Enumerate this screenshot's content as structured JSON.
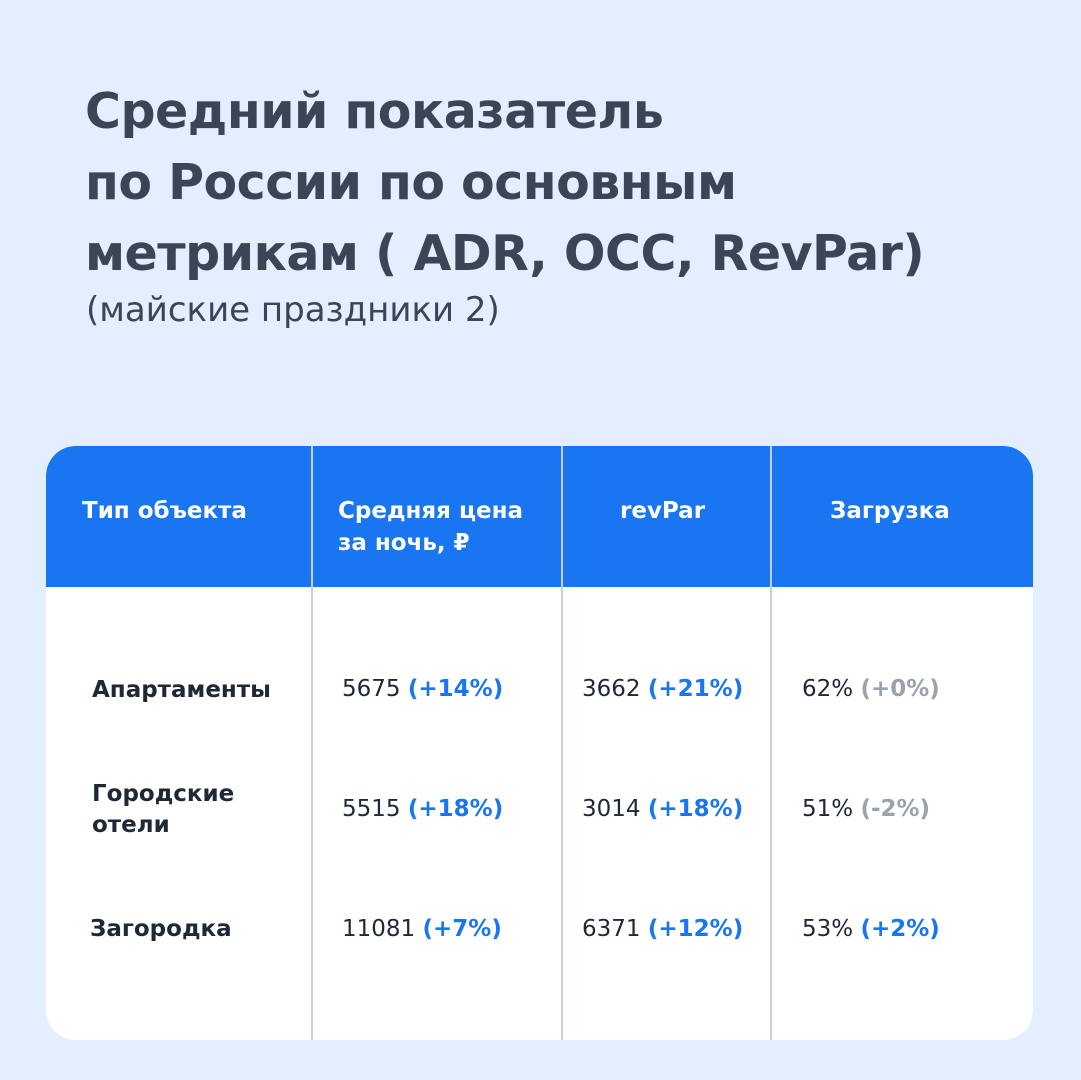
{
  "title": {
    "lines": [
      "Средний показатель",
      "по России по основным",
      "метрикам ( ADR, OCC, RevPar)"
    ],
    "subtitle": "(майские праздники 2)"
  },
  "table": {
    "headers": {
      "type": "Тип объекта",
      "price_line1": "Средняя цена",
      "price_line2": "за ночь, ₽",
      "revpar": "revPar",
      "occupancy": "Загрузка"
    },
    "rows": [
      {
        "name_line1": "Апартаменты",
        "name_line2": "",
        "price": "5675",
        "price_change": "(+14%)",
        "revpar": "3662",
        "revpar_change": "(+21%)",
        "occupancy": "62%",
        "occupancy_change": "(+0%)"
      },
      {
        "name_line1": "Городские",
        "name_line2": "отели",
        "price": "5515",
        "price_change": "(+18%)",
        "revpar": "3014",
        "revpar_change": "(+18%)",
        "occupancy": "51%",
        "occupancy_change": "(-2%)"
      },
      {
        "name_line1": "Загородка",
        "name_line2": "",
        "price": "11081",
        "price_change": "(+7%)",
        "revpar": "6371",
        "revpar_change": "(+12%)",
        "occupancy": "53%",
        "occupancy_change": "(+2%)"
      }
    ]
  },
  "colors": {
    "background": "#e3efff",
    "header": "#1976f0",
    "positive_change": "#1976f0",
    "neutral_change": "#9aa3ad",
    "text": "#3a4557"
  }
}
